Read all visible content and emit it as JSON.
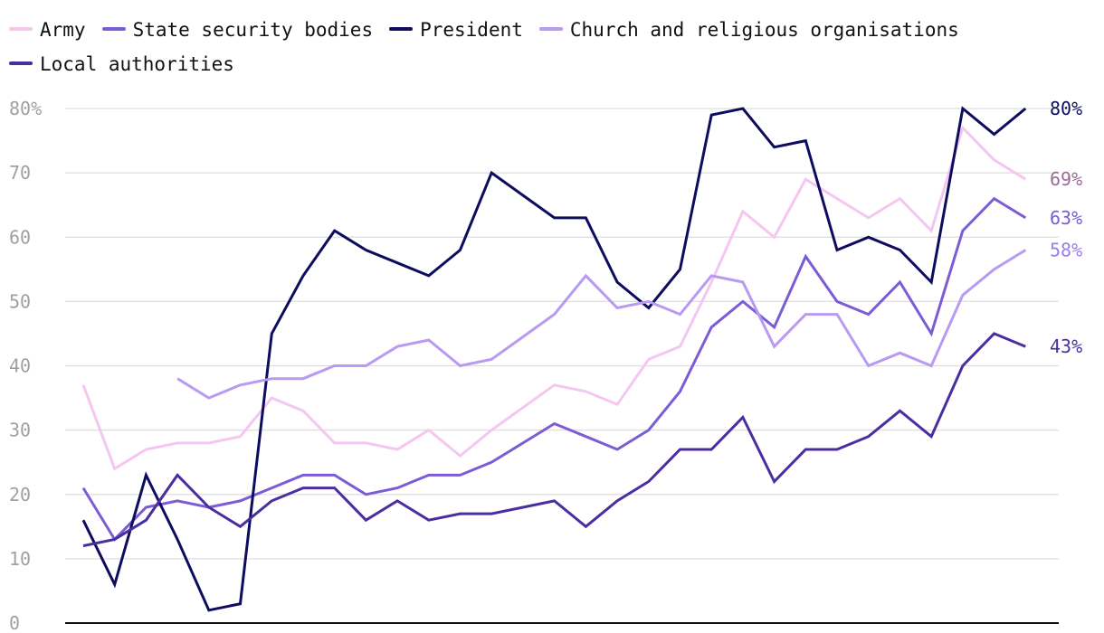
{
  "chart_data": {
    "type": "line",
    "title": "",
    "xlabel": "",
    "ylabel": "",
    "ylim": [
      0,
      80
    ],
    "y_ticks": [
      0,
      10,
      20,
      30,
      40,
      50,
      60,
      70,
      80
    ],
    "y_tick_labels": [
      "0",
      "10",
      "20",
      "30",
      "40",
      "50",
      "60",
      "70",
      "80%"
    ],
    "grid": true,
    "legend_position": "top-left",
    "x_count": 32,
    "series": [
      {
        "name": "Army",
        "color": "#f5c6f0",
        "end_label": "69%",
        "end_label_color": "#9b6a96",
        "values": [
          37,
          24,
          27,
          28,
          28,
          29,
          35,
          33,
          28,
          28,
          27,
          30,
          26,
          30,
          33.5,
          37,
          36,
          34,
          41,
          43,
          53,
          64,
          60,
          69,
          66,
          63,
          66,
          61,
          77,
          72,
          69,
          null
        ]
      },
      {
        "name": "State security bodies",
        "color": "#7b5cd6",
        "end_label": "63%",
        "end_label_color": "#7b5cd6",
        "values": [
          21,
          13,
          18,
          19,
          18,
          19,
          21,
          23,
          23,
          20,
          21,
          23,
          23,
          25,
          28,
          31,
          29,
          27,
          30,
          36,
          46,
          50,
          46,
          57,
          50,
          48,
          53,
          45,
          61,
          66,
          63,
          null
        ]
      },
      {
        "name": "President",
        "color": "#0d0c5e",
        "end_label": "80%",
        "end_label_color": "#0d0c5e",
        "values": [
          16,
          6,
          23,
          13,
          2,
          3,
          45,
          54,
          61,
          58,
          56,
          54,
          58,
          70,
          66.5,
          63,
          63,
          53,
          49,
          55,
          79,
          80,
          74,
          75,
          58,
          60,
          58,
          53,
          80,
          76,
          80,
          null
        ]
      },
      {
        "name": "Church and religious organisations",
        "color": "#b89af2",
        "end_label": "58%",
        "end_label_color": "#9b7ee6",
        "values": [
          null,
          null,
          null,
          38,
          35,
          37,
          38,
          38,
          40,
          40,
          43,
          44,
          40,
          41,
          44.5,
          48,
          54,
          49,
          50,
          48,
          54,
          53,
          43,
          48,
          48,
          40,
          42,
          40,
          51,
          55,
          58,
          null
        ]
      },
      {
        "name": "Local authorities",
        "color": "#4a2ea0",
        "end_label": "43%",
        "end_label_color": "#4a2ea0",
        "values": [
          12,
          13,
          16,
          23,
          18,
          15,
          19,
          21,
          21,
          16,
          19,
          16,
          17,
          17,
          18,
          19,
          15,
          19,
          22,
          27,
          27,
          32,
          22,
          27,
          27,
          29,
          33,
          29,
          40,
          45,
          43,
          null
        ]
      }
    ]
  }
}
